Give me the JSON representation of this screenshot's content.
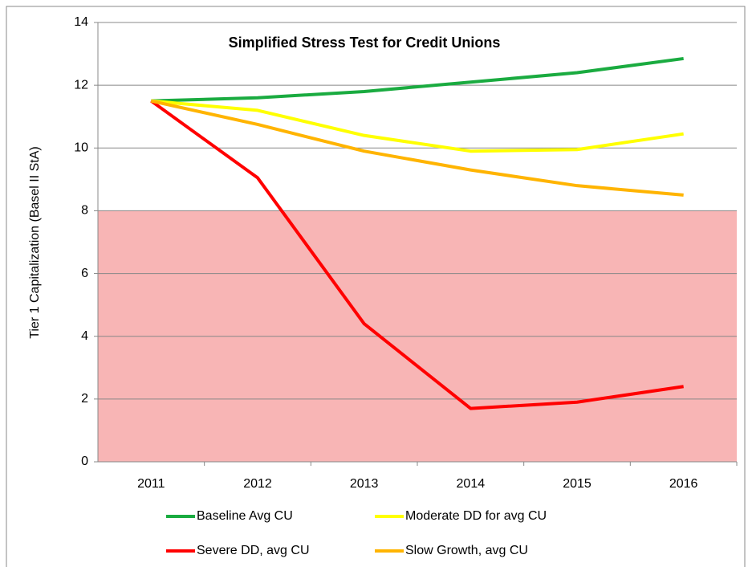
{
  "chart_data": {
    "type": "line",
    "title": "Simplified Stress Test for Credit Unions",
    "y_label": "Tier 1 Capitalization  (Basel II StA)",
    "categories": [
      "2011",
      "2012",
      "2013",
      "2014",
      "2015",
      "2016"
    ],
    "series": [
      {
        "name": "Baseline Avg CU",
        "color": "#1aab40",
        "values": [
          11.5,
          11.6,
          11.8,
          12.1,
          12.4,
          12.85
        ]
      },
      {
        "name": "Moderate DD for avg CU",
        "color": "#ffff00",
        "values": [
          11.5,
          11.2,
          10.4,
          9.9,
          9.95,
          10.45
        ]
      },
      {
        "name": "Severe DD, avg CU",
        "color": "#ff0000",
        "values": [
          11.5,
          9.05,
          4.4,
          1.7,
          1.9,
          2.4
        ]
      },
      {
        "name": "Slow Growth, avg CU",
        "color": "#ffb400",
        "values": [
          11.5,
          10.75,
          9.9,
          9.3,
          8.8,
          8.5
        ]
      }
    ],
    "shaded_band": {
      "from": 0,
      "to": 8,
      "color": "#f7a8a8"
    },
    "ylim": [
      0,
      14
    ],
    "yticks": [
      0,
      2,
      4,
      6,
      8,
      10,
      12,
      14
    ],
    "grid": true
  }
}
